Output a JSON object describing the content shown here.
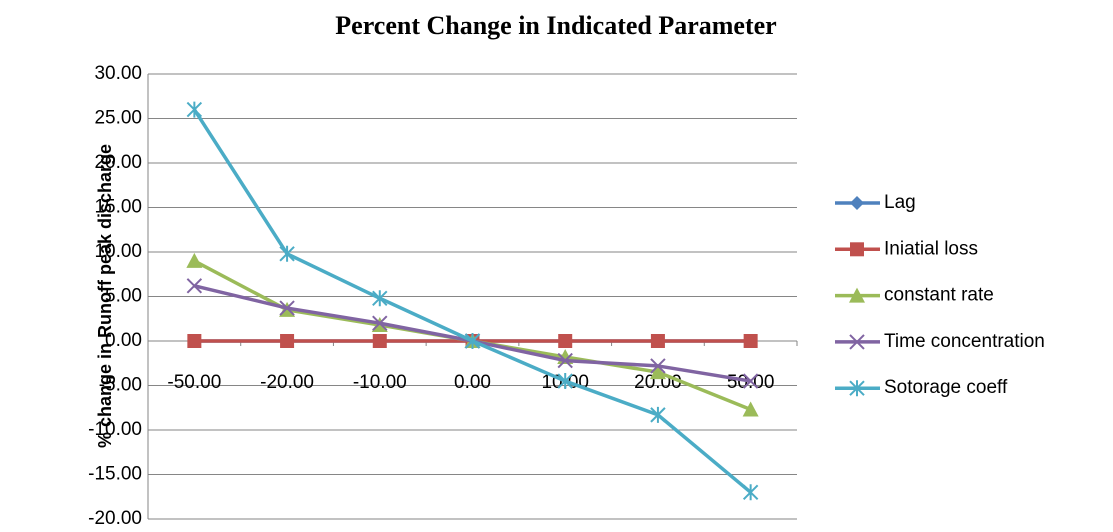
{
  "chart_data": {
    "type": "line",
    "title": "Percent Change in Indicated Parameter",
    "y_label": "% change in Runoff peak discharge",
    "categories": [
      "-50.00",
      "-20.00",
      "-10.00",
      "0.00",
      "10.00",
      "20.00",
      "50.00"
    ],
    "series": [
      {
        "name": "Lag",
        "color": "#4F81BD",
        "marker": "diamond",
        "values": [
          0,
          0,
          0,
          0,
          0,
          0,
          0
        ]
      },
      {
        "name": "Iniatial loss",
        "color": "#C0504D",
        "marker": "square",
        "values": [
          0,
          0,
          0,
          0,
          0,
          0,
          0
        ]
      },
      {
        "name": "constant rate",
        "color": "#9BBB59",
        "marker": "triangle",
        "values": [
          9.0,
          3.5,
          1.8,
          0,
          -1.8,
          -3.5,
          -7.7
        ]
      },
      {
        "name": "Time concentration",
        "color": "#8064A2",
        "marker": "x",
        "values": [
          6.2,
          3.7,
          2.0,
          0,
          -2.2,
          -2.8,
          -4.5
        ]
      },
      {
        "name": "Sotorage coeff",
        "color": "#4BACC6",
        "marker": "star",
        "values": [
          26.0,
          9.8,
          4.8,
          0,
          -4.5,
          -8.3,
          -17.0
        ]
      }
    ],
    "ylim": [
      -20,
      30
    ],
    "yticks": [
      {
        "value": -20,
        "label": "-20.00"
      },
      {
        "value": -15,
        "label": "-15.00"
      },
      {
        "value": -10,
        "label": "-10.00"
      },
      {
        "value": -5,
        "label": "-5.00"
      },
      {
        "value": 0,
        "label": "0.00"
      },
      {
        "value": 5,
        "label": "5.00"
      },
      {
        "value": 10,
        "label": "10.00"
      },
      {
        "value": 15,
        "label": "15.00"
      },
      {
        "value": 20,
        "label": "20.00"
      },
      {
        "value": 25,
        "label": "25.00"
      },
      {
        "value": 30,
        "label": "30.00"
      }
    ],
    "grid": true,
    "legend": "right"
  }
}
